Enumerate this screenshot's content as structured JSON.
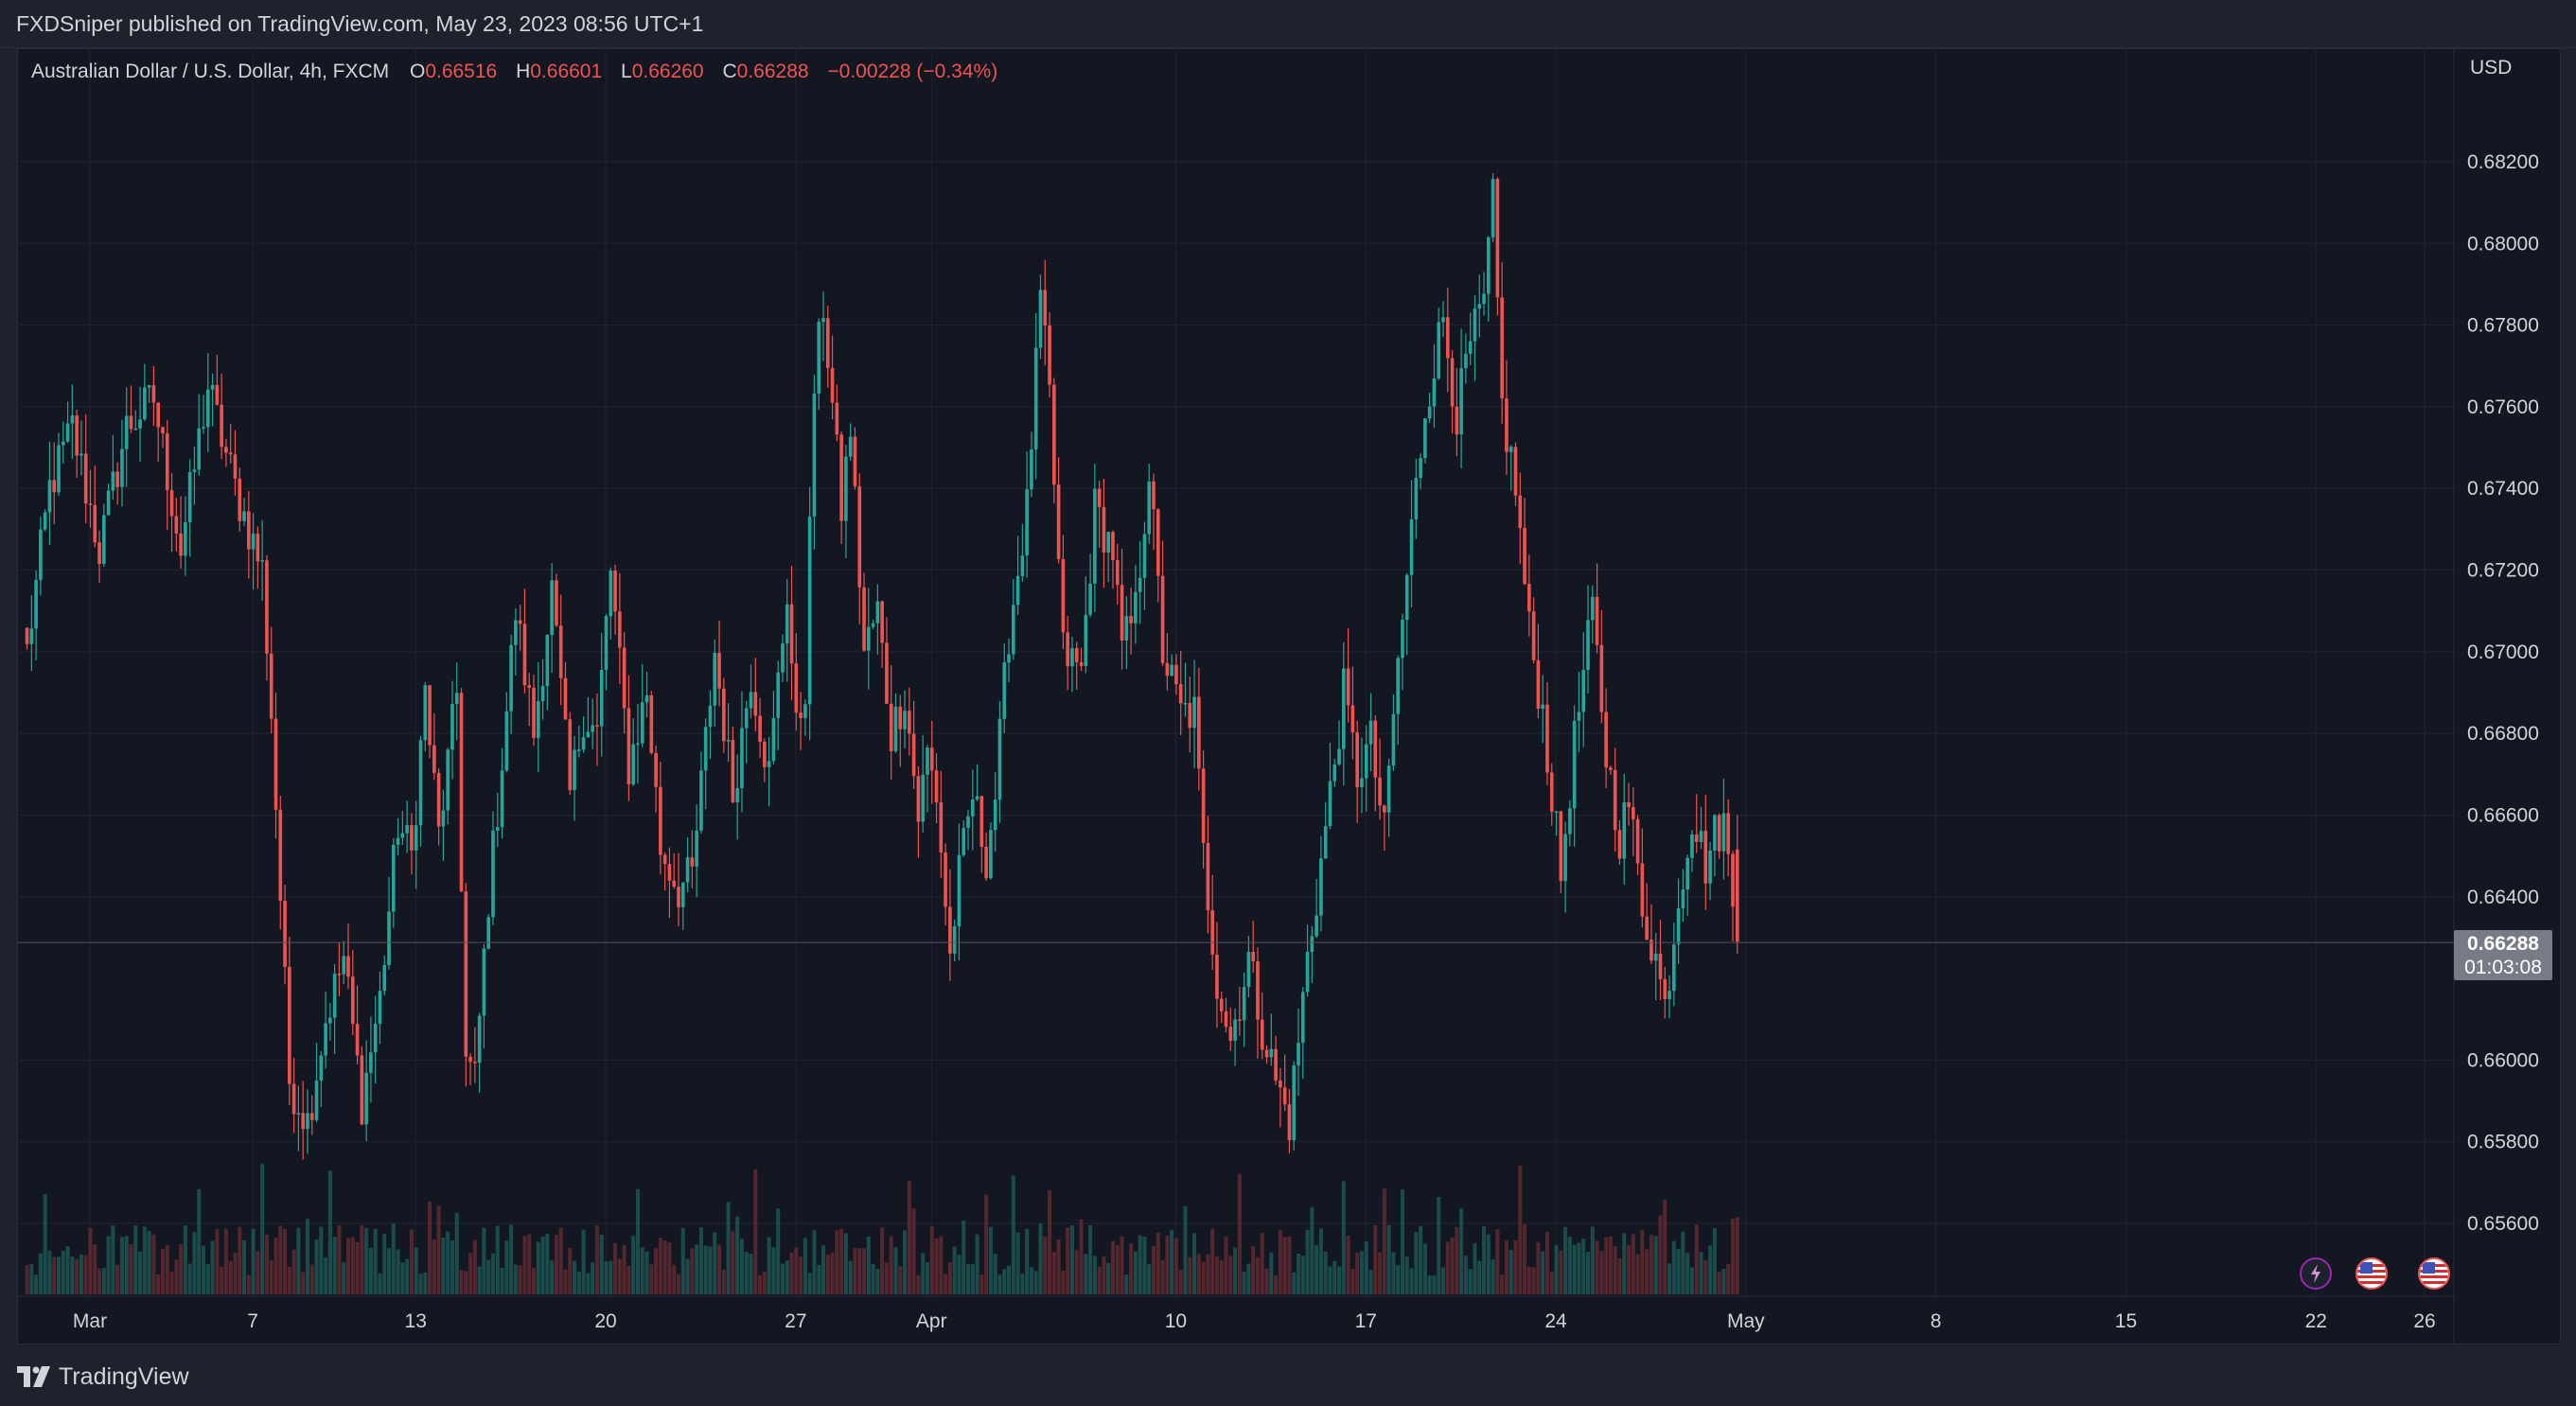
{
  "header": {
    "publish_line": "FXDSniper published on TradingView.com, May 23, 2023 08:56 UTC+1"
  },
  "legend": {
    "symbol": "Australian Dollar / U.S. Dollar, 4h, FXCM",
    "open_label": "O",
    "open": "0.66516",
    "high_label": "H",
    "high": "0.66601",
    "low_label": "L",
    "low": "0.66260",
    "close_label": "C",
    "close": "0.66288",
    "change": "−0.00228 (−0.34%)"
  },
  "price_axis": {
    "currency": "USD",
    "last_price": "0.66288",
    "countdown": "01:03:08"
  },
  "footer": {
    "brand": "TradingView"
  },
  "colors": {
    "up": "#26a69a",
    "down": "#ef5350",
    "background": "#131722",
    "grid": "#1f2430",
    "up_volume": "#1f5f5b",
    "down_volume": "#6b2c33"
  },
  "icons": [
    "lightning-event-icon",
    "us-flag-event-icon",
    "us-flag-event-icon"
  ],
  "chart_data": {
    "type": "candlestick",
    "symbol": "AUDUSD",
    "interval": "4h",
    "y_ticks": [
      "0.68200",
      "0.68000",
      "0.67800",
      "0.67600",
      "0.67400",
      "0.67200",
      "0.67000",
      "0.66800",
      "0.66600",
      "0.66400",
      "0.66000",
      "0.65800",
      "0.65600"
    ],
    "ylim": [
      0.6548,
      0.6838
    ],
    "x_ticks": [
      "Mar",
      "7",
      "13",
      "20",
      "27",
      "Apr",
      "10",
      "17",
      "24",
      "May",
      "8",
      "15",
      "22",
      "26"
    ],
    "x_tick_days": [
      0,
      6,
      12,
      19,
      26,
      31,
      40,
      47,
      54,
      61,
      68,
      75,
      82,
      86
    ],
    "days_range": [
      -2.4,
      92
    ],
    "bars_per_day": 6,
    "first_bar_day": -2.4,
    "close_path": [
      [
        0.67,
        0
      ],
      [
        0.674,
        5
      ],
      [
        0.6755,
        10
      ],
      [
        0.6725,
        16
      ],
      [
        0.6755,
        22
      ],
      [
        0.6762,
        28
      ],
      [
        0.6725,
        34
      ],
      [
        0.6765,
        40
      ],
      [
        0.674,
        46
      ],
      [
        0.672,
        52
      ],
      [
        0.6685,
        54
      ],
      [
        0.6595,
        58
      ],
      [
        0.6585,
        62
      ],
      [
        0.661,
        66
      ],
      [
        0.6625,
        70
      ],
      [
        0.659,
        74
      ],
      [
        0.6615,
        78
      ],
      [
        0.6658,
        82
      ],
      [
        0.665,
        85
      ],
      [
        0.669,
        88
      ],
      [
        0.6655,
        91
      ],
      [
        0.669,
        95
      ],
      [
        0.66,
        97
      ],
      [
        0.6595,
        99
      ],
      [
        0.664,
        102
      ],
      [
        0.6662,
        104
      ],
      [
        0.671,
        108
      ],
      [
        0.668,
        112
      ],
      [
        0.6715,
        116
      ],
      [
        0.669,
        118
      ],
      [
        0.6665,
        120
      ],
      [
        0.6685,
        123
      ],
      [
        0.668,
        126
      ],
      [
        0.672,
        129
      ],
      [
        0.6672,
        133
      ],
      [
        0.669,
        137
      ],
      [
        0.6652,
        140
      ],
      [
        0.6642,
        144
      ],
      [
        0.6645,
        147
      ],
      [
        0.67,
        152
      ],
      [
        0.6665,
        156
      ],
      [
        0.6695,
        160
      ],
      [
        0.667,
        164
      ],
      [
        0.6715,
        168
      ],
      [
        0.668,
        170
      ],
      [
        0.6692,
        172
      ],
      [
        0.6765,
        174
      ],
      [
        0.6785,
        176
      ],
      [
        0.6735,
        180
      ],
      [
        0.6755,
        182
      ],
      [
        0.67,
        185
      ],
      [
        0.671,
        188
      ],
      [
        0.668,
        191
      ],
      [
        0.669,
        194
      ],
      [
        0.666,
        197
      ],
      [
        0.6675,
        199
      ],
      [
        0.6665,
        201
      ],
      [
        0.6625,
        204
      ],
      [
        0.6645,
        206
      ],
      [
        0.6665,
        209
      ],
      [
        0.665,
        212
      ],
      [
        0.6665,
        214
      ],
      [
        0.6705,
        217
      ],
      [
        0.6735,
        221
      ],
      [
        0.6786,
        224
      ],
      [
        0.6762,
        226
      ],
      [
        0.67,
        229
      ],
      [
        0.6695,
        233
      ],
      [
        0.6735,
        236
      ],
      [
        0.6725,
        240
      ],
      [
        0.67,
        242
      ],
      [
        0.671,
        245
      ],
      [
        0.6745,
        248
      ],
      [
        0.67,
        251
      ],
      [
        0.6685,
        255
      ],
      [
        0.6685,
        258
      ],
      [
        0.665,
        260
      ],
      [
        0.662,
        263
      ],
      [
        0.6605,
        266
      ],
      [
        0.6625,
        270
      ],
      [
        0.6608,
        273
      ],
      [
        0.6595,
        276
      ],
      [
        0.6585,
        279
      ],
      [
        0.6625,
        283
      ],
      [
        0.664,
        285
      ],
      [
        0.6665,
        288
      ],
      [
        0.669,
        291
      ],
      [
        0.667,
        294
      ],
      [
        0.6678,
        297
      ],
      [
        0.6655,
        300
      ],
      [
        0.6685,
        302
      ],
      [
        0.673,
        306
      ],
      [
        0.676,
        309
      ],
      [
        0.6782,
        313
      ],
      [
        0.6758,
        316
      ],
      [
        0.6775,
        319
      ],
      [
        0.6785,
        322
      ],
      [
        0.681,
        324
      ],
      [
        0.676,
        326
      ],
      [
        0.674,
        329
      ],
      [
        0.6705,
        332
      ],
      [
        0.6685,
        335
      ],
      [
        0.6645,
        339
      ],
      [
        0.6678,
        342
      ],
      [
        0.671,
        346
      ],
      [
        0.6675,
        349
      ],
      [
        0.6655,
        352
      ],
      [
        0.6663,
        354
      ],
      [
        0.6638,
        357
      ],
      [
        0.6625,
        360
      ],
      [
        0.6613,
        362
      ],
      [
        0.664,
        365
      ],
      [
        0.666,
        368
      ],
      [
        0.6648,
        371
      ],
      [
        0.6655,
        373
      ],
      [
        0.6658,
        375
      ],
      [
        0.6629,
        378
      ]
    ]
  }
}
